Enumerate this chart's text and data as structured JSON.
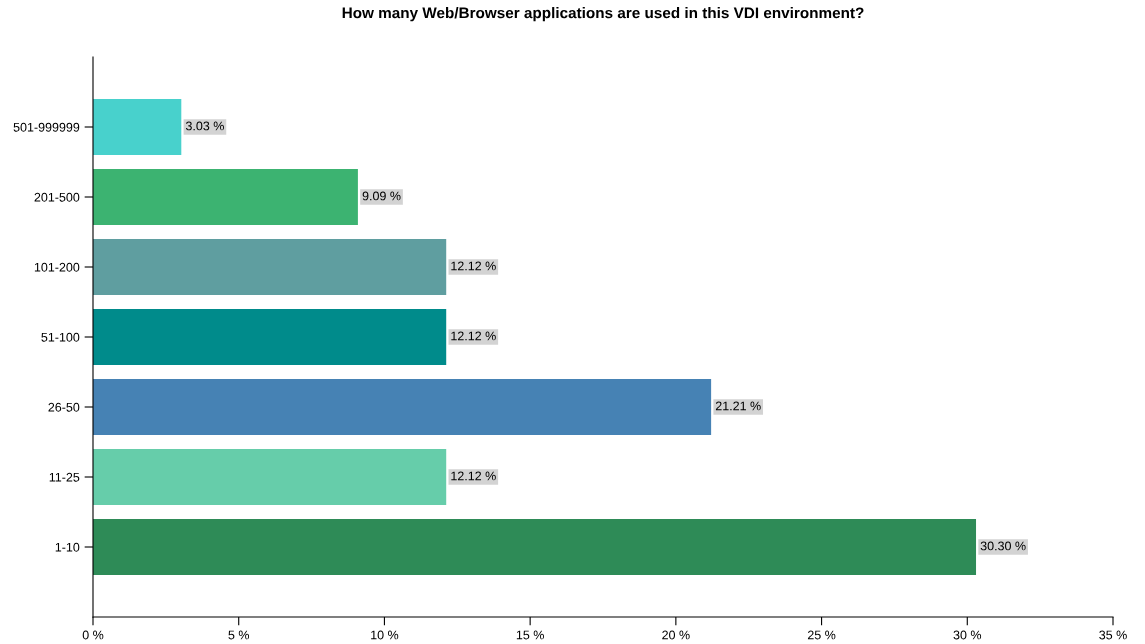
{
  "chart_data": {
    "type": "bar",
    "orientation": "horizontal",
    "title": "How many Web/Browser applications are used in this VDI environment?",
    "categories": [
      "501-999999",
      "201-500",
      "101-200",
      "51-100",
      "26-50",
      "11-25",
      "1-10"
    ],
    "values": [
      3.03,
      9.09,
      12.12,
      12.12,
      21.21,
      12.12,
      30.3
    ],
    "colors": [
      "#48d1cc",
      "#3cb371",
      "#5f9ea0",
      "#008b8b",
      "#4682b4",
      "#66cdaa",
      "#2e8b57"
    ],
    "value_labels": [
      "3.03 %",
      "9.09 %",
      "12.12 %",
      "12.12 %",
      "21.21 %",
      "12.12 %",
      "30.30 %"
    ],
    "xlim": [
      0,
      35
    ],
    "xticks": [
      {
        "value": 0,
        "label": "0 %"
      },
      {
        "value": 5,
        "label": "5 %"
      },
      {
        "value": 10,
        "label": "10 %"
      },
      {
        "value": 15,
        "label": "15 %"
      },
      {
        "value": 20,
        "label": "20 %"
      },
      {
        "value": 25,
        "label": "25 %"
      },
      {
        "value": 30,
        "label": "30 %"
      },
      {
        "value": 35,
        "label": "35 %"
      }
    ],
    "grid": false,
    "legend": false
  }
}
